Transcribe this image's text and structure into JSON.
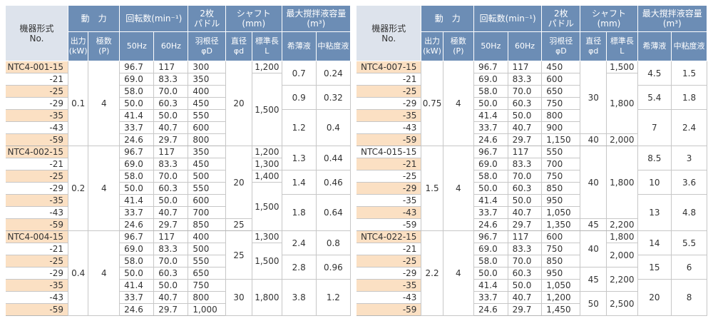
{
  "header": {
    "model": "機器形式",
    "model_sub": "No.",
    "power": "動　力",
    "rpm": "回転数(min⁻¹)",
    "paddle": "2枚\nパドル",
    "shaft": "シャフト\n(mm)",
    "capacity": "最大撹拌液容量\n(m³)",
    "output": "出力\n(kW)",
    "poles": "極数\n(P)",
    "hz50": "50Hz",
    "hz60": "60Hz",
    "blade_dia": "羽根径\nφD",
    "shaft_dia": "直径\nφd",
    "std_len": "標準長\nL",
    "dilute": "希薄液",
    "medium": "中粘度液"
  },
  "left_table": [
    {
      "model_base": "NTC4-001-15",
      "kw": "0.1",
      "p": "4",
      "rows": [
        {
          "m": "NTC4-001-15",
          "r50": "96.7",
          "r60": "117",
          "d": "300"
        },
        {
          "m": "-21",
          "r50": "69.0",
          "r60": "83.3",
          "d": "350"
        },
        {
          "m": "-25",
          "r50": "58.0",
          "r60": "70.0",
          "d": "400"
        },
        {
          "m": "-29",
          "r50": "50.0",
          "r60": "60.3",
          "d": "450"
        },
        {
          "m": "-35",
          "r50": "41.4",
          "r60": "50.0",
          "d": "550"
        },
        {
          "m": "-43",
          "r50": "33.7",
          "r60": "40.7",
          "d": "600"
        },
        {
          "m": "-59",
          "r50": "24.6",
          "r60": "29.7",
          "d": "800"
        }
      ],
      "shaft_d": [
        {
          "v": "20",
          "span": 7
        }
      ],
      "shaft_l": [
        {
          "v": "1,200",
          "span": 1
        },
        {
          "v": "1,500",
          "span": 6
        }
      ],
      "cap": [
        {
          "a": "0.7",
          "b": "0.24",
          "span": 2
        },
        {
          "a": "0.9",
          "b": "0.32",
          "span": 2
        },
        {
          "a": "1.2",
          "b": "0.4",
          "span": 3
        }
      ]
    },
    {
      "kw": "0.2",
      "p": "4",
      "rows": [
        {
          "m": "NTC4-002-15",
          "r50": "96.7",
          "r60": "117",
          "d": "350"
        },
        {
          "m": "-21",
          "r50": "69.0",
          "r60": "83.3",
          "d": "450"
        },
        {
          "m": "-25",
          "r50": "58.0",
          "r60": "70.0",
          "d": "500"
        },
        {
          "m": "-29",
          "r50": "50.0",
          "r60": "60.3",
          "d": "550"
        },
        {
          "m": "-35",
          "r50": "41.4",
          "r60": "50.0",
          "d": "600"
        },
        {
          "m": "-43",
          "r50": "33.7",
          "r60": "40.7",
          "d": "700"
        },
        {
          "m": "-59",
          "r50": "24.6",
          "r60": "29.7",
          "d": "850"
        }
      ],
      "shaft_d": [
        {
          "v": "20",
          "span": 6
        },
        {
          "v": "25",
          "span": 1
        }
      ],
      "shaft_l": [
        {
          "v": "1,200",
          "span": 1
        },
        {
          "v": "1,300",
          "span": 1
        },
        {
          "v": "1,400",
          "span": 1
        },
        {
          "v": "1,500",
          "span": 4
        }
      ],
      "cap": [
        {
          "a": "1.3",
          "b": "0.44",
          "span": 2
        },
        {
          "a": "1.4",
          "b": "0.46",
          "span": 2
        },
        {
          "a": "1.8",
          "b": "0.64",
          "span": 3
        }
      ]
    },
    {
      "kw": "0.4",
      "p": "4",
      "rows": [
        {
          "m": "NTC4-004-15",
          "r50": "96.7",
          "r60": "117",
          "d": "400"
        },
        {
          "m": "-21",
          "r50": "69.0",
          "r60": "83.3",
          "d": "500"
        },
        {
          "m": "-25",
          "r50": "58.0",
          "r60": "70.0",
          "d": "550"
        },
        {
          "m": "-29",
          "r50": "50.0",
          "r60": "60.3",
          "d": "650"
        },
        {
          "m": "-35",
          "r50": "41.4",
          "r60": "50.0",
          "d": "750"
        },
        {
          "m": "-43",
          "r50": "33.7",
          "r60": "40.7",
          "d": "800"
        },
        {
          "m": "-59",
          "r50": "24.6",
          "r60": "29.7",
          "d": "1,000"
        }
      ],
      "shaft_d": [
        {
          "v": "25",
          "span": 4
        },
        {
          "v": "30",
          "span": 3
        }
      ],
      "shaft_l": [
        {
          "v": "1,300",
          "span": 1
        },
        {
          "v": "1,500",
          "span": 3
        },
        {
          "v": "1,800",
          "span": 3
        }
      ],
      "cap": [
        {
          "a": "2.4",
          "b": "0.8",
          "span": 2
        },
        {
          "a": "2.8",
          "b": "0.96",
          "span": 2
        },
        {
          "a": "3.8",
          "b": "1.2",
          "span": 3
        }
      ]
    }
  ],
  "right_table": [
    {
      "kw": "0.75",
      "p": "4",
      "rows": [
        {
          "m": "NTC4-007-15",
          "r50": "96.7",
          "r60": "117",
          "d": "450"
        },
        {
          "m": "-21",
          "r50": "69.0",
          "r60": "83.3",
          "d": "600"
        },
        {
          "m": "-25",
          "r50": "58.0",
          "r60": "70.0",
          "d": "650"
        },
        {
          "m": "-29",
          "r50": "50.0",
          "r60": "60.3",
          "d": "750"
        },
        {
          "m": "-35",
          "r50": "41.4",
          "r60": "50.0",
          "d": "800"
        },
        {
          "m": "-43",
          "r50": "33.7",
          "r60": "40.7",
          "d": "900"
        },
        {
          "m": "-59",
          "r50": "24.6",
          "r60": "29.7",
          "d": "1,150"
        }
      ],
      "shaft_d": [
        {
          "v": "30",
          "span": 6
        },
        {
          "v": "40",
          "span": 1
        }
      ],
      "shaft_l": [
        {
          "v": "1,500",
          "span": 1
        },
        {
          "v": "1,800",
          "span": 5
        },
        {
          "v": "2,000",
          "span": 1
        }
      ],
      "cap": [
        {
          "a": "4.5",
          "b": "1.5",
          "span": 2
        },
        {
          "a": "5.4",
          "b": "1.8",
          "span": 2
        },
        {
          "a": "7",
          "b": "2.4",
          "span": 3
        }
      ]
    },
    {
      "kw": "1.5",
      "p": "4",
      "rows": [
        {
          "m": "NTC4-015-15",
          "r50": "96.7",
          "r60": "117",
          "d": "550"
        },
        {
          "m": "-21",
          "r50": "69.0",
          "r60": "83.3",
          "d": "700"
        },
        {
          "m": "-25",
          "r50": "58.0",
          "r60": "70.0",
          "d": "750"
        },
        {
          "m": "-29",
          "r50": "50.0",
          "r60": "60.3",
          "d": "850"
        },
        {
          "m": "-35",
          "r50": "41.4",
          "r60": "50.0",
          "d": "950"
        },
        {
          "m": "-43",
          "r50": "33.7",
          "r60": "40.7",
          "d": "1,050"
        },
        {
          "m": "-59",
          "r50": "24.6",
          "r60": "29.7",
          "d": "1,350"
        }
      ],
      "shaft_d": [
        {
          "v": "40",
          "span": 6
        },
        {
          "v": "45",
          "span": 1
        }
      ],
      "shaft_l": [
        {
          "v": "1,800",
          "span": 6
        },
        {
          "v": "2,200",
          "span": 1
        }
      ],
      "cap": [
        {
          "a": "8.5",
          "b": "3",
          "span": 2
        },
        {
          "a": "10",
          "b": "3.6",
          "span": 2
        },
        {
          "a": "13",
          "b": "4.8",
          "span": 3
        }
      ]
    },
    {
      "kw": "2.2",
      "p": "4",
      "rows": [
        {
          "m": "NTC4-022-15",
          "r50": "96.7",
          "r60": "117",
          "d": "600"
        },
        {
          "m": "-21",
          "r50": "69.0",
          "r60": "83.3",
          "d": "750"
        },
        {
          "m": "-25",
          "r50": "58.0",
          "r60": "70.0",
          "d": "850"
        },
        {
          "m": "-29",
          "r50": "50.0",
          "r60": "60.3",
          "d": "950"
        },
        {
          "m": "-35",
          "r50": "41.4",
          "r60": "50.0",
          "d": "1,050"
        },
        {
          "m": "-43",
          "r50": "33.7",
          "r60": "40.7",
          "d": "1,200"
        },
        {
          "m": "-59",
          "r50": "24.6",
          "r60": "29.7",
          "d": "1,450"
        }
      ],
      "shaft_d": [
        {
          "v": "40",
          "span": 3
        },
        {
          "v": "45",
          "span": 2
        },
        {
          "v": "50",
          "span": 2
        }
      ],
      "shaft_l": [
        {
          "v": "1,800",
          "span": 1
        },
        {
          "v": "2,000",
          "span": 2
        },
        {
          "v": "2,200",
          "span": 2
        },
        {
          "v": "2,500",
          "span": 2
        }
      ],
      "cap": [
        {
          "a": "14",
          "b": "5.5",
          "span": 2
        },
        {
          "a": "15",
          "b": "6",
          "span": 2
        },
        {
          "a": "20",
          "b": "8",
          "span": 3
        }
      ]
    }
  ]
}
